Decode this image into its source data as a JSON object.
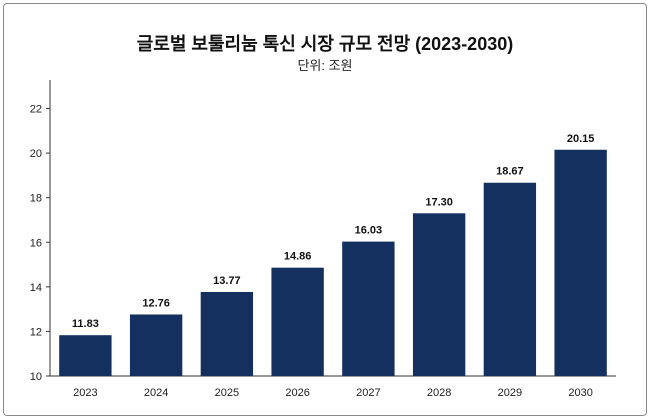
{
  "chart_data": {
    "type": "bar",
    "title": "글로벌 보툴리눔 톡신 시장 규모 전망 (2023-2030)",
    "subtitle": "단위: 조원",
    "categories": [
      "2023",
      "2024",
      "2025",
      "2026",
      "2027",
      "2028",
      "2029",
      "2030"
    ],
    "values": [
      11.83,
      12.76,
      13.77,
      14.86,
      16.03,
      17.3,
      18.67,
      20.15
    ],
    "value_labels": [
      "11.83",
      "12.76",
      "13.77",
      "14.86",
      "16.03",
      "17.30",
      "18.67",
      "20.15"
    ],
    "yticks": [
      "10",
      "12",
      "14",
      "16",
      "18",
      "20",
      "22"
    ],
    "ylim": [
      10,
      23.1
    ],
    "xlabel": "",
    "ylabel": "",
    "legend": "none",
    "grid": false,
    "bar_color": "#14305e"
  }
}
